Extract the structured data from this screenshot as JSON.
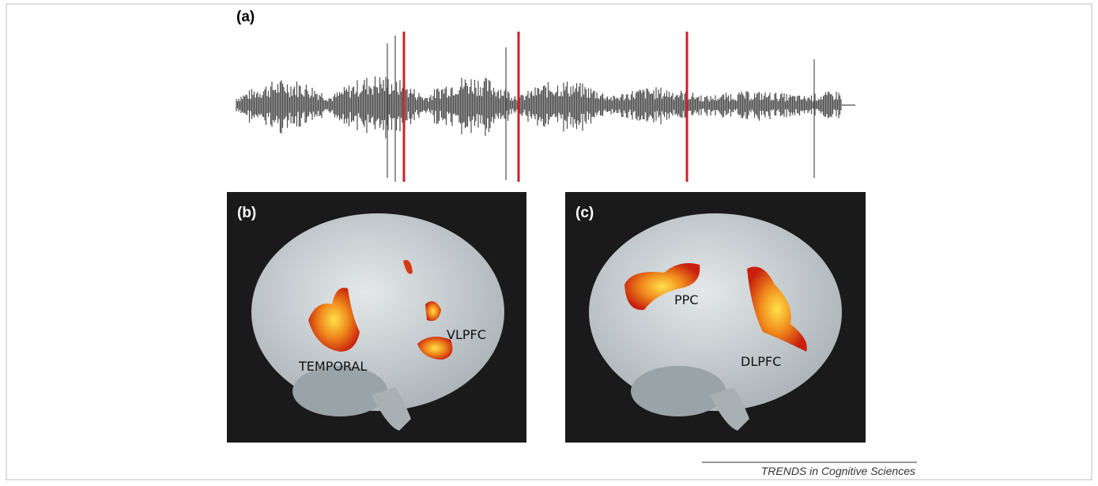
{
  "panel_a": {
    "label": "(a)"
  },
  "panel_b": {
    "label": "(b)",
    "regions": [
      "TEMPORAL",
      "VLPFC"
    ]
  },
  "panel_c": {
    "label": "(c)",
    "regions": [
      "PPC",
      "DLPFC"
    ]
  },
  "footer": {
    "source": "TRENDS in Cognitive Sciences"
  }
}
